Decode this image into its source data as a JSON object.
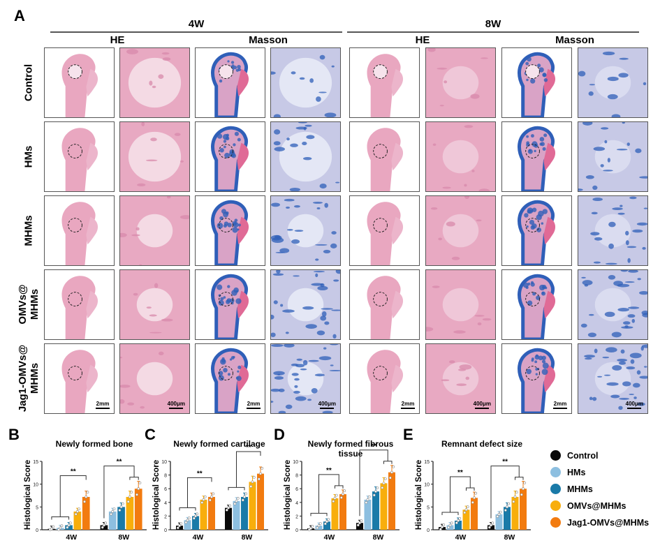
{
  "panel_a": {
    "letter": "A",
    "timepoints": [
      {
        "label": "4W"
      },
      {
        "label": "8W"
      }
    ],
    "stains": [
      "HE",
      "Masson",
      "HE",
      "Masson"
    ],
    "groups": [
      "Control",
      "HMs",
      "MHMs",
      "OMVs@\nMHMs",
      "Jag1-OMVs@\nMHMs"
    ],
    "group_lines": [
      [
        "Control"
      ],
      [
        "HMs"
      ],
      [
        "MHMs"
      ],
      [
        "OMVs@",
        "MHMs"
      ],
      [
        "Jag1-OMVs@",
        "MHMs"
      ]
    ],
    "scale_bars": {
      "overview": "2mm",
      "detail": "400μm"
    },
    "tile_types": [
      "HE overview",
      "HE detail",
      "Masson overview",
      "Masson detail",
      "HE overview",
      "HE detail",
      "Masson overview",
      "Masson detail"
    ]
  },
  "legend": {
    "items": [
      {
        "label": "Control",
        "color": "#0a0a0a"
      },
      {
        "label": "HMs",
        "color": "#8dbfe0"
      },
      {
        "label": "MHMs",
        "color": "#1a7aa8"
      },
      {
        "label": "OMVs@MHMs",
        "color": "#f8ae0c"
      },
      {
        "label": "Jag1-OMVs@MHMs",
        "color": "#f27b0f"
      }
    ]
  },
  "chart_data": [
    {
      "panel": "B",
      "type": "bar",
      "title": "Newly formed bone",
      "xlabel": "",
      "ylabel": "Histological Score",
      "ylim": [
        0,
        15
      ],
      "yticks": [
        0,
        5,
        10,
        15
      ],
      "categories": [
        "4W",
        "8W"
      ],
      "series": [
        {
          "name": "Control",
          "values": [
            0.2,
            1.0
          ]
        },
        {
          "name": "HMs",
          "values": [
            0.4,
            4.0
          ]
        },
        {
          "name": "MHMs",
          "values": [
            1.0,
            5.0
          ]
        },
        {
          "name": "OMVs@MHMs",
          "values": [
            4.0,
            7.2
          ]
        },
        {
          "name": "Jag1-OMVs@MHMs",
          "values": [
            7.2,
            9.0
          ]
        }
      ],
      "significance": [
        {
          "category": "4W",
          "label": "**",
          "type": "group-vs-one"
        },
        {
          "category": "8W",
          "label": "**",
          "type": "one-vs-group"
        }
      ],
      "grid": false
    },
    {
      "panel": "C",
      "type": "bar",
      "title": "Newly formed cartilage",
      "xlabel": "",
      "ylabel": "Histological Score",
      "ylim": [
        0,
        10
      ],
      "yticks": [
        0,
        2,
        4,
        6,
        8,
        10
      ],
      "categories": [
        "4W",
        "8W"
      ],
      "series": [
        {
          "name": "Control",
          "values": [
            0.6,
            3.2
          ]
        },
        {
          "name": "HMs",
          "values": [
            1.4,
            4.2
          ]
        },
        {
          "name": "MHMs",
          "values": [
            2.0,
            4.8
          ]
        },
        {
          "name": "OMVs@MHMs",
          "values": [
            4.4,
            7.0
          ]
        },
        {
          "name": "Jag1-OMVs@MHMs",
          "values": [
            4.8,
            8.2
          ]
        }
      ],
      "significance": [
        {
          "category": "4W",
          "label": "**",
          "type": "group-vs-one"
        },
        {
          "category": "8W",
          "label": "**",
          "type": "group-vs-one"
        }
      ],
      "grid": false
    },
    {
      "panel": "D",
      "type": "bar",
      "title": "Newly formed fibrous tissue",
      "xlabel": "",
      "ylabel": "Histological Score",
      "ylim": [
        0,
        10
      ],
      "yticks": [
        0,
        2,
        4,
        6,
        8,
        10
      ],
      "categories": [
        "4W",
        "8W"
      ],
      "series": [
        {
          "name": "Control",
          "values": [
            0.2,
            1.0
          ]
        },
        {
          "name": "HMs",
          "values": [
            0.6,
            4.4
          ]
        },
        {
          "name": "MHMs",
          "values": [
            1.2,
            5.6
          ]
        },
        {
          "name": "OMVs@MHMs",
          "values": [
            4.6,
            6.8
          ]
        },
        {
          "name": "Jag1-OMVs@MHMs",
          "values": [
            5.2,
            8.4
          ]
        }
      ],
      "significance": [
        {
          "category": "4W",
          "label": "**",
          "type": "group-vs-group"
        },
        {
          "category": "8W",
          "label": "**",
          "type": "one-vs-group"
        }
      ],
      "grid": false
    },
    {
      "panel": "E",
      "type": "bar",
      "title": "Remnant defect size",
      "xlabel": "",
      "ylabel": "Histological Score",
      "ylim": [
        0,
        15
      ],
      "yticks": [
        0,
        5,
        10,
        15
      ],
      "categories": [
        "4W",
        "8W"
      ],
      "series": [
        {
          "name": "Control",
          "values": [
            0.6,
            1.0
          ]
        },
        {
          "name": "HMs",
          "values": [
            1.0,
            3.4
          ]
        },
        {
          "name": "MHMs",
          "values": [
            2.0,
            5.0
          ]
        },
        {
          "name": "OMVs@MHMs",
          "values": [
            4.4,
            7.2
          ]
        },
        {
          "name": "Jag1-OMVs@MHMs",
          "values": [
            7.0,
            9.0
          ]
        }
      ],
      "significance": [
        {
          "category": "4W",
          "label": "**",
          "type": "group-vs-group"
        },
        {
          "category": "8W",
          "label": "**",
          "type": "one-vs-group"
        }
      ],
      "grid": false
    }
  ]
}
